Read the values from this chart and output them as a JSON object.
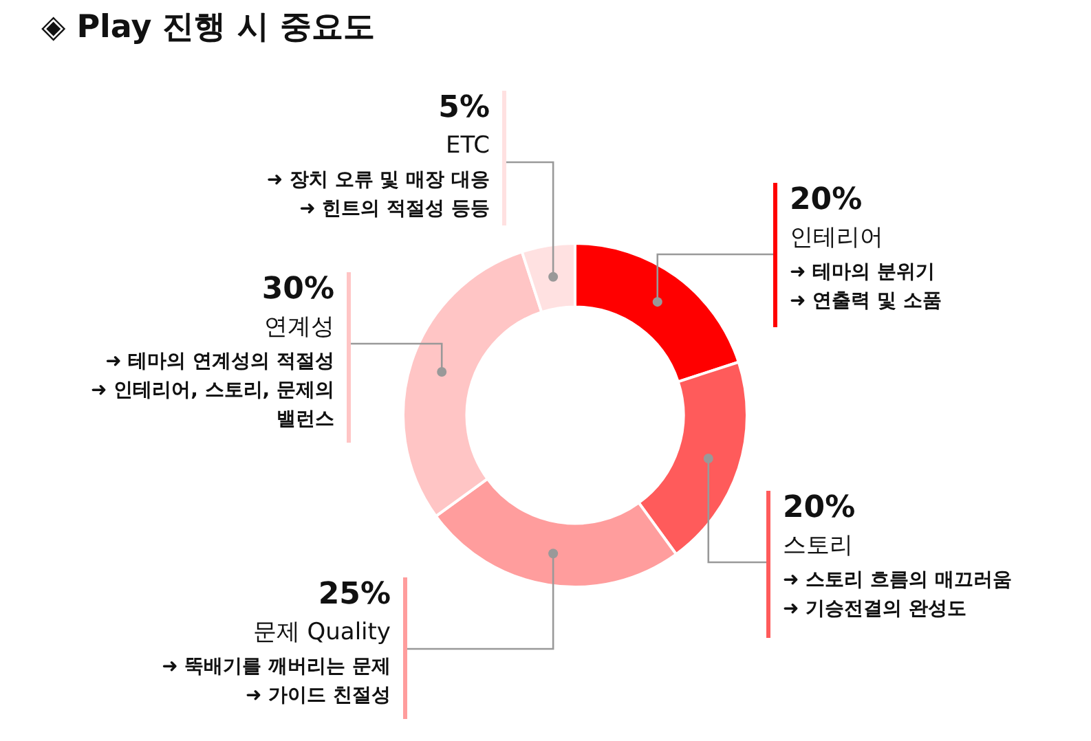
{
  "chart_data": {
    "type": "donut",
    "title": "◈ Play 진행 시 중요도",
    "categories": [
      "인테리어",
      "스토리",
      "문제 Quality",
      "연계성",
      "ETC"
    ],
    "values": [
      20,
      20,
      25,
      30,
      5
    ],
    "value_labels": [
      "20%",
      "20%",
      "25%",
      "30%",
      "5%"
    ],
    "colors": [
      "#ff0000",
      "#ff5b5b",
      "#ff9d9d",
      "#ffc5c5",
      "#ffe1e1"
    ],
    "annotations": [
      "➜ 테마의 분위기\n➜ 연출력 및 소품",
      "➜ 스토리 흐름의 매끄러움\n➜ 기승전결의 완성도",
      "➜ 뚝배기를 깨버리는 문제\n➜ 가이드 친절성",
      "➜ 테마의 연계성의 적절성\n➜ 인테리어, 스토리, 문제의\n밸런스",
      "➜ 장치 오류 및 매장 대응\n➜ 힌트의 적절성 등등"
    ],
    "legend": false
  }
}
